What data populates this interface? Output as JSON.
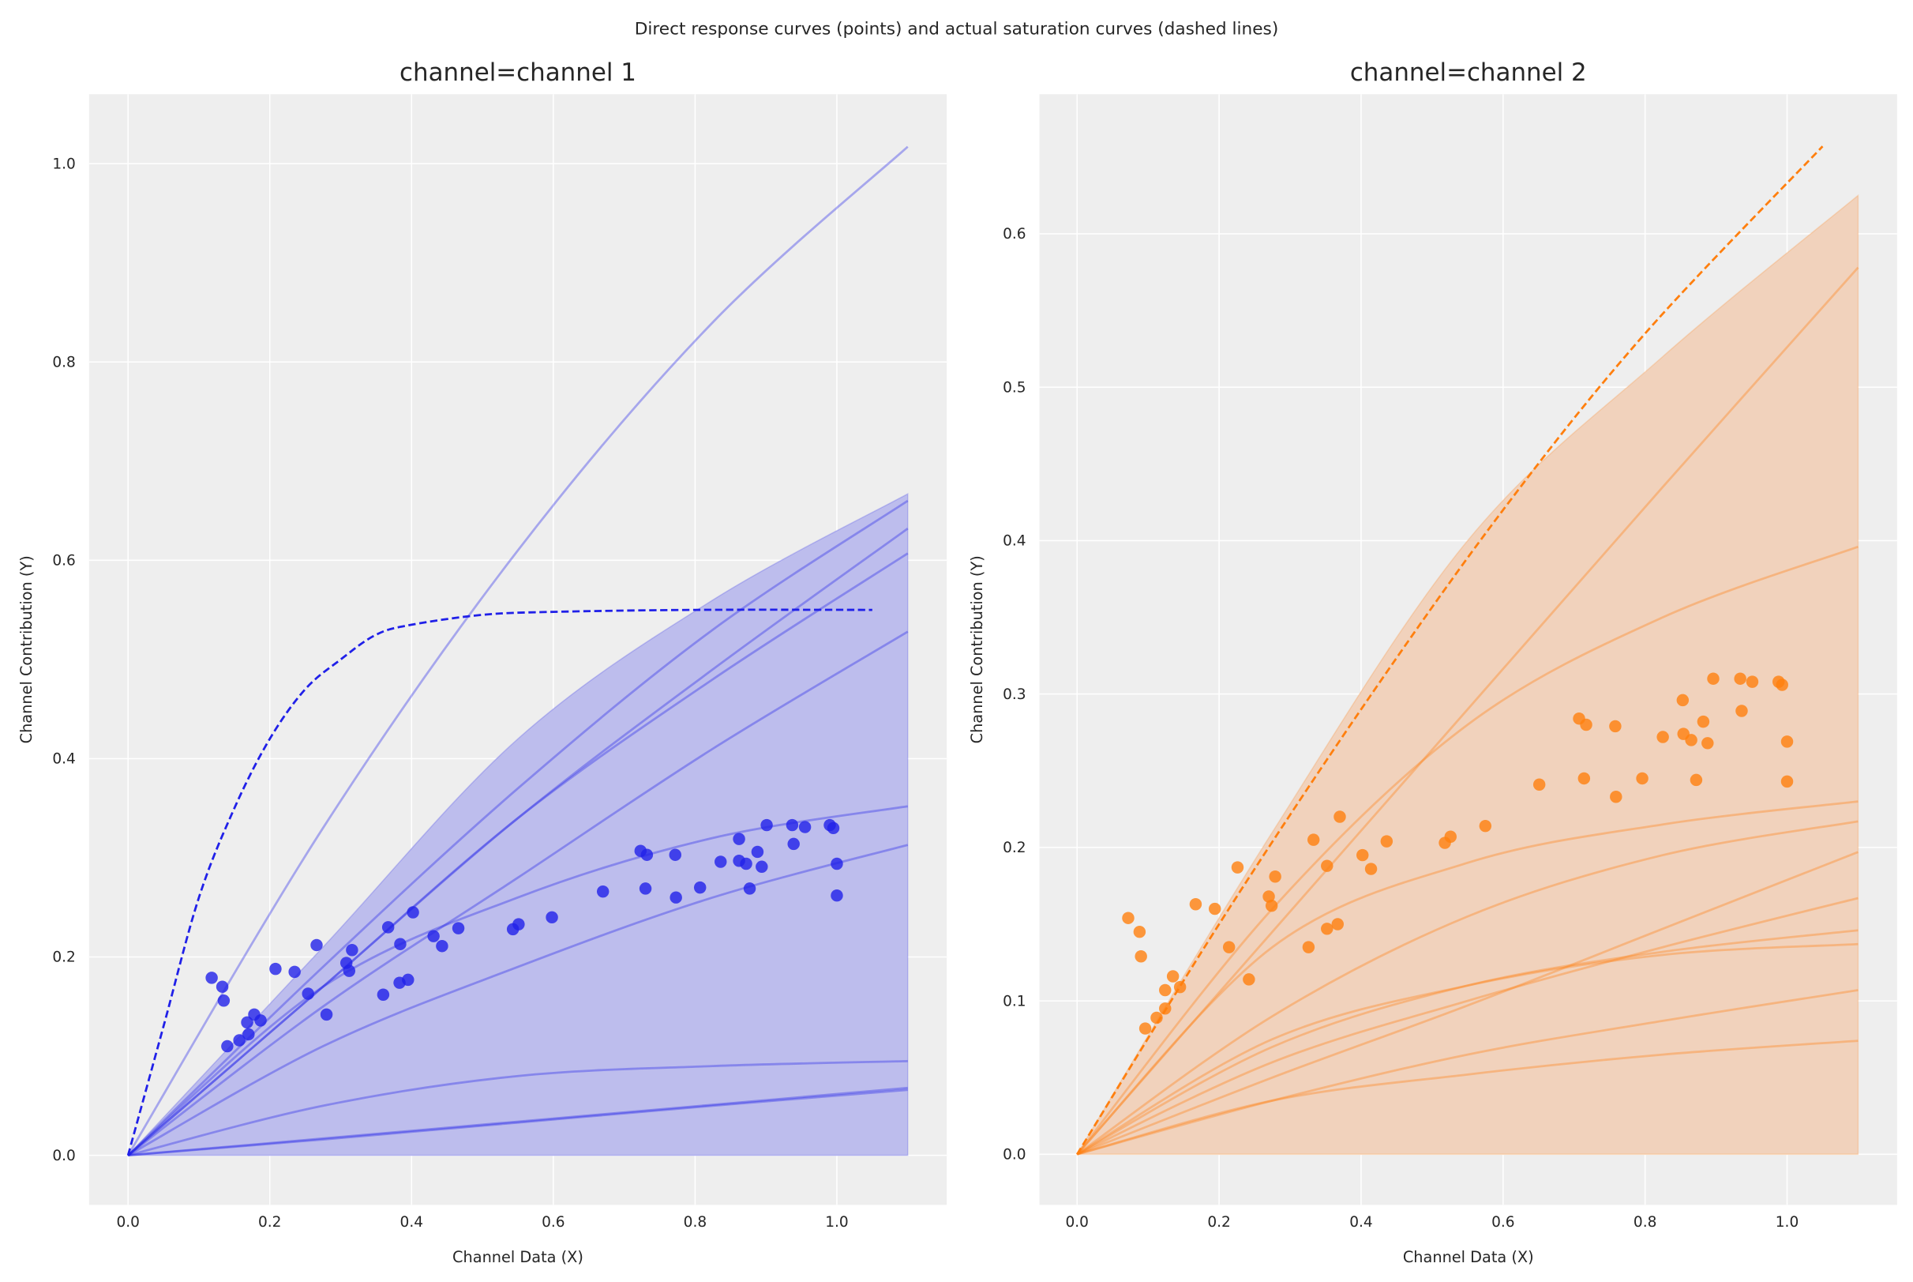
{
  "suptitle": "Direct response curves (points) and actual saturation curves (dashed lines)",
  "chart_data": [
    {
      "type": "scatter",
      "title": "channel=channel 1",
      "xlabel": "Channel Data (X)",
      "ylabel": "Channel Contribution (Y)",
      "xlim": [
        -0.055,
        1.155
      ],
      "ylim": [
        -0.05,
        1.07
      ],
      "xticks": [
        "0.0",
        "0.2",
        "0.4",
        "0.6",
        "0.8",
        "1.0"
      ],
      "yticks": [
        "0.0",
        "0.2",
        "0.4",
        "0.6",
        "0.8",
        "1.0"
      ],
      "grid": true,
      "color": "#2020e8",
      "band_color": "#b9b9ec",
      "points": [
        [
          0.118,
          0.179
        ],
        [
          0.133,
          0.17
        ],
        [
          0.135,
          0.156
        ],
        [
          0.14,
          0.11
        ],
        [
          0.157,
          0.116
        ],
        [
          0.17,
          0.122
        ],
        [
          0.168,
          0.134
        ],
        [
          0.178,
          0.142
        ],
        [
          0.187,
          0.136
        ],
        [
          0.208,
          0.188
        ],
        [
          0.235,
          0.185
        ],
        [
          0.254,
          0.163
        ],
        [
          0.266,
          0.212
        ],
        [
          0.28,
          0.142
        ],
        [
          0.308,
          0.194
        ],
        [
          0.312,
          0.186
        ],
        [
          0.316,
          0.207
        ],
        [
          0.36,
          0.162
        ],
        [
          0.367,
          0.23
        ],
        [
          0.384,
          0.213
        ],
        [
          0.383,
          0.174
        ],
        [
          0.395,
          0.177
        ],
        [
          0.402,
          0.245
        ],
        [
          0.431,
          0.221
        ],
        [
          0.443,
          0.211
        ],
        [
          0.466,
          0.229
        ],
        [
          0.543,
          0.228
        ],
        [
          0.551,
          0.233
        ],
        [
          0.598,
          0.24
        ],
        [
          0.67,
          0.266
        ],
        [
          0.723,
          0.307
        ],
        [
          0.732,
          0.303
        ],
        [
          0.73,
          0.269
        ],
        [
          0.772,
          0.303
        ],
        [
          0.773,
          0.26
        ],
        [
          0.807,
          0.27
        ],
        [
          0.836,
          0.296
        ],
        [
          0.862,
          0.319
        ],
        [
          0.862,
          0.297
        ],
        [
          0.872,
          0.294
        ],
        [
          0.877,
          0.269
        ],
        [
          0.888,
          0.306
        ],
        [
          0.894,
          0.291
        ],
        [
          0.901,
          0.333
        ],
        [
          0.937,
          0.333
        ],
        [
          0.939,
          0.314
        ],
        [
          0.955,
          0.331
        ],
        [
          0.99,
          0.333
        ],
        [
          0.995,
          0.33
        ],
        [
          1.0,
          0.294
        ],
        [
          1.0,
          0.262
        ]
      ],
      "saturation_curve": {
        "x": [
          0,
          0.05,
          0.1,
          0.15,
          0.2,
          0.25,
          0.3,
          0.35,
          0.4,
          0.5,
          0.6,
          0.8,
          1.05
        ],
        "y": [
          0,
          0.13,
          0.26,
          0.35,
          0.42,
          0.47,
          0.5,
          0.525,
          0.535,
          0.545,
          0.548,
          0.55,
          0.55
        ]
      },
      "sample_x": [
        0,
        0.275,
        0.55,
        0.825,
        1.1
      ],
      "sample_curves": [
        [
          0,
          0.33,
          0.61,
          0.84,
          1.017
        ],
        [
          0,
          0.19,
          0.37,
          0.53,
          0.66
        ],
        [
          0,
          0.17,
          0.34,
          0.49,
          0.632
        ],
        [
          0,
          0.17,
          0.34,
          0.48,
          0.607
        ],
        [
          0,
          0.15,
          0.28,
          0.41,
          0.528
        ],
        [
          0,
          0.17,
          0.26,
          0.32,
          0.352
        ],
        [
          0,
          0.11,
          0.19,
          0.26,
          0.313
        ],
        [
          0,
          0.05,
          0.08,
          0.09,
          0.095
        ],
        [
          0,
          0.017,
          0.034,
          0.051,
          0.068
        ],
        [
          0,
          0.016,
          0.033,
          0.05,
          0.066
        ]
      ],
      "band_upper": [
        0,
        0.21,
        0.42,
        0.56,
        0.667
      ],
      "band_lower": [
        0,
        0,
        0,
        0,
        0
      ]
    },
    {
      "type": "scatter",
      "title": "channel=channel 2",
      "xlabel": "Channel Data (X)",
      "ylabel": "Channel Contribution (Y)",
      "xlim": [
        -0.053,
        1.155
      ],
      "ylim": [
        -0.033,
        0.691
      ],
      "xticks": [
        "0.0",
        "0.2",
        "0.4",
        "0.6",
        "0.8",
        "1.0"
      ],
      "yticks": [
        "0.0",
        "0.1",
        "0.2",
        "0.3",
        "0.4",
        "0.5",
        "0.6"
      ],
      "grid": true,
      "color": "#ff7f0e",
      "band_color": "#f0d0b8",
      "points": [
        [
          0.072,
          0.154
        ],
        [
          0.088,
          0.145
        ],
        [
          0.09,
          0.129
        ],
        [
          0.096,
          0.082
        ],
        [
          0.112,
          0.089
        ],
        [
          0.124,
          0.095
        ],
        [
          0.124,
          0.107
        ],
        [
          0.135,
          0.116
        ],
        [
          0.145,
          0.109
        ],
        [
          0.167,
          0.163
        ],
        [
          0.194,
          0.16
        ],
        [
          0.214,
          0.135
        ],
        [
          0.226,
          0.187
        ],
        [
          0.242,
          0.114
        ],
        [
          0.27,
          0.168
        ],
        [
          0.274,
          0.162
        ],
        [
          0.279,
          0.181
        ],
        [
          0.326,
          0.135
        ],
        [
          0.333,
          0.205
        ],
        [
          0.352,
          0.188
        ],
        [
          0.352,
          0.147
        ],
        [
          0.367,
          0.15
        ],
        [
          0.37,
          0.22
        ],
        [
          0.402,
          0.195
        ],
        [
          0.414,
          0.186
        ],
        [
          0.436,
          0.204
        ],
        [
          0.518,
          0.203
        ],
        [
          0.526,
          0.207
        ],
        [
          0.575,
          0.214
        ],
        [
          0.651,
          0.241
        ],
        [
          0.707,
          0.284
        ],
        [
          0.717,
          0.28
        ],
        [
          0.714,
          0.245
        ],
        [
          0.758,
          0.279
        ],
        [
          0.759,
          0.233
        ],
        [
          0.796,
          0.245
        ],
        [
          0.825,
          0.272
        ],
        [
          0.853,
          0.296
        ],
        [
          0.854,
          0.274
        ],
        [
          0.865,
          0.27
        ],
        [
          0.872,
          0.244
        ],
        [
          0.882,
          0.282
        ],
        [
          0.888,
          0.268
        ],
        [
          0.896,
          0.31
        ],
        [
          0.934,
          0.31
        ],
        [
          0.936,
          0.289
        ],
        [
          0.951,
          0.308
        ],
        [
          0.988,
          0.308
        ],
        [
          0.993,
          0.306
        ],
        [
          1.0,
          0.269
        ],
        [
          1.0,
          0.243
        ]
      ],
      "saturation_curve": {
        "x": [
          0,
          0.2,
          0.4,
          0.6,
          0.8,
          1.05
        ],
        "y": [
          0,
          0.15,
          0.29,
          0.42,
          0.535,
          0.657
        ]
      },
      "sample_x": [
        0,
        0.275,
        0.55,
        0.825,
        1.1
      ],
      "sample_curves": [
        [
          0,
          0.145,
          0.29,
          0.435,
          0.578
        ],
        [
          0,
          0.16,
          0.28,
          0.35,
          0.396
        ],
        [
          0,
          0.135,
          0.19,
          0.215,
          0.23
        ],
        [
          0,
          0.09,
          0.155,
          0.195,
          0.217
        ],
        [
          0,
          0.05,
          0.097,
          0.147,
          0.197
        ],
        [
          0,
          0.06,
          0.1,
          0.135,
          0.167
        ],
        [
          0,
          0.07,
          0.11,
          0.132,
          0.146
        ],
        [
          0,
          0.075,
          0.11,
          0.13,
          0.137
        ],
        [
          0,
          0.035,
          0.065,
          0.087,
          0.107
        ],
        [
          0,
          0.035,
          0.052,
          0.065,
          0.074
        ]
      ],
      "band_upper": [
        0,
        0.21,
        0.4,
        0.52,
        0.625
      ],
      "band_lower": [
        0,
        0,
        0,
        0,
        0
      ]
    }
  ]
}
